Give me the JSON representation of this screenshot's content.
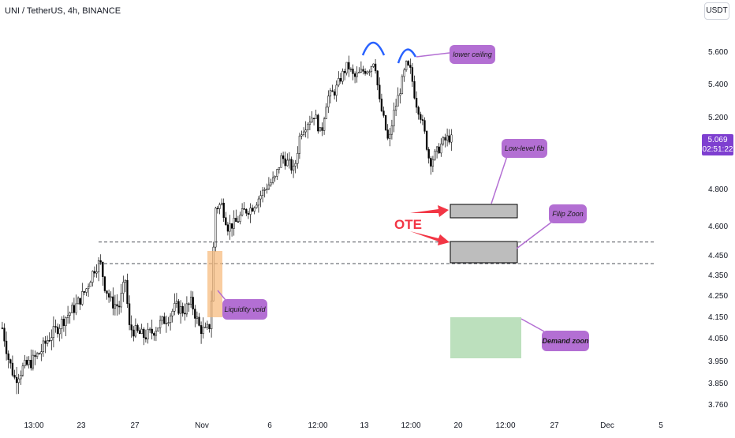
{
  "header": {
    "title": "UNI / TetherUS, 4h, BINANCE",
    "currency": "USDT"
  },
  "price_tag": {
    "value": "5.069",
    "countdown": "02:51:22",
    "color": "#7e3fd0"
  },
  "annotations": {
    "lower_ceiling": "lower ceiling",
    "low_level_fib": "Low-level fib",
    "filip_zoon": "Filip Zoon",
    "demand_zoon": "Demand zoon",
    "liquidity_void": "Liquidity void",
    "ote": "OTE"
  },
  "colors": {
    "callout": "#b36fd3",
    "arrow": "#f23645",
    "arc": "#2962ff",
    "demand_zone": "#a5d6a7",
    "liquidity_zone": "#f7b877",
    "fib_box": "#bdbdbd"
  },
  "chart_data": {
    "type": "candlestick",
    "title": "UNI / TetherUS, 4h, BINANCE",
    "y_ticks": [
      "5.600",
      "5.400",
      "5.200",
      "4.800",
      "4.600",
      "4.450",
      "4.350",
      "4.250",
      "4.150",
      "4.050",
      "3.950",
      "3.850",
      "3.760"
    ],
    "x_ticks": [
      "13:00",
      "23",
      "27",
      "Nov",
      "6",
      "12:00",
      "13",
      "12:00",
      "20",
      "12:00",
      "27",
      "Dec",
      "5"
    ],
    "horizontal_lines": [
      4.52,
      4.41
    ],
    "last_price": 5.069,
    "candles_description": "UNI/USDT 4h candles rising from about 3.88 to a double top near 5.58, then pulling back to about 5.07"
  }
}
